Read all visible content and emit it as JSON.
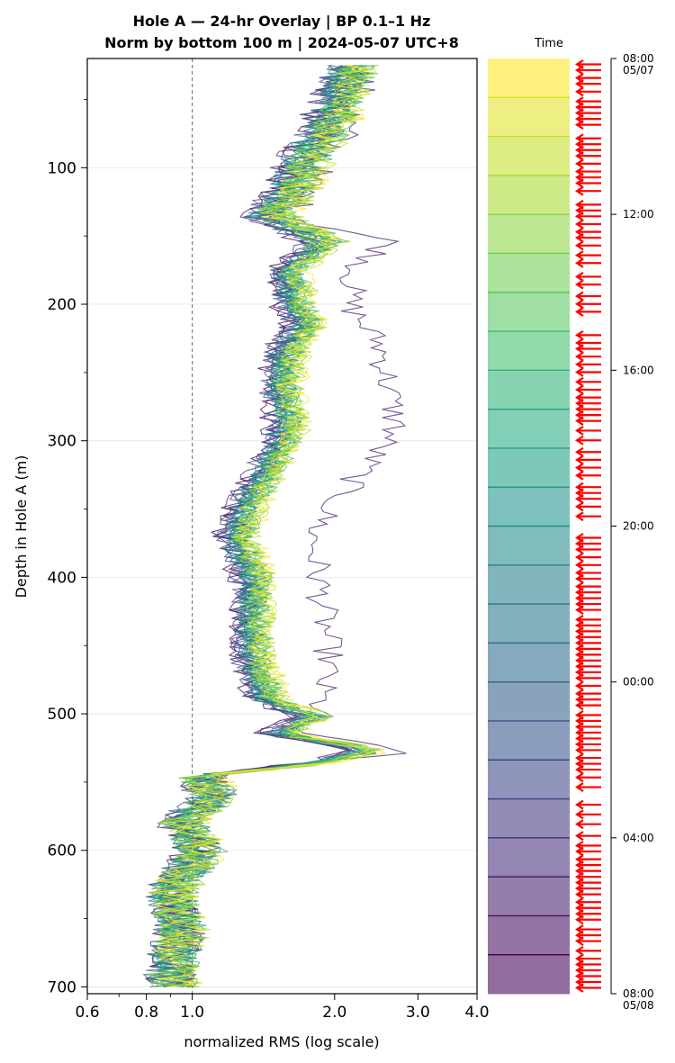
{
  "title_line1": "Hole A — 24-hr Overlay  |  BP 0.1–1 Hz",
  "title_line2": "Norm by bottom 100 m  |  2024-05-07 UTC+8",
  "chart_data": {
    "type": "line",
    "xlabel": "normalized RMS  (log scale)",
    "ylabel": "Depth in Hole A (m)",
    "xscale": "log",
    "xlim": [
      0.6,
      4.0
    ],
    "ylim": [
      705,
      20
    ],
    "y_inverted": true,
    "x_ticks": [
      {
        "value": 0.6,
        "label": "0.6"
      },
      {
        "value": 0.8,
        "label": "0.8"
      },
      {
        "value": 1.0,
        "label": "1.0"
      },
      {
        "value": 2.0,
        "label": "2.0"
      },
      {
        "value": 3.0,
        "label": "3.0"
      },
      {
        "value": 4.0,
        "label": "4.0"
      }
    ],
    "y_ticks": [
      {
        "value": 100,
        "label": "100"
      },
      {
        "value": 200,
        "label": "200"
      },
      {
        "value": 300,
        "label": "300"
      },
      {
        "value": 400,
        "label": "400"
      },
      {
        "value": 500,
        "label": "500"
      },
      {
        "value": 600,
        "label": "600"
      },
      {
        "value": 700,
        "label": "700"
      }
    ],
    "grid": "horizontal",
    "reference_line": {
      "x": 1.0,
      "style": "dashed",
      "color": "#7f7f7f"
    },
    "n_profiles": 24,
    "profile_depths": [
      25,
      40,
      60,
      80,
      100,
      120,
      135,
      155,
      175,
      200,
      215,
      230,
      260,
      290,
      320,
      350,
      370,
      400,
      430,
      460,
      490,
      502,
      515,
      527,
      535,
      545,
      560,
      580,
      600,
      630,
      660,
      690,
      700
    ],
    "profile_rms_median": [
      2.2,
      2.1,
      2.0,
      1.85,
      1.7,
      1.6,
      1.45,
      1.9,
      1.6,
      1.65,
      1.75,
      1.6,
      1.55,
      1.6,
      1.45,
      1.3,
      1.25,
      1.35,
      1.35,
      1.35,
      1.45,
      1.8,
      1.5,
      2.4,
      1.9,
      1.05,
      1.1,
      0.95,
      1.05,
      0.9,
      0.95,
      0.9,
      0.92
    ],
    "outlier_profile_rms": [
      2.25,
      2.2,
      2.15,
      2.0,
      1.8,
      1.7,
      1.55,
      2.6,
      2.2,
      2.15,
      2.3,
      2.5,
      2.6,
      2.7,
      2.3,
      1.95,
      1.8,
      1.85,
      1.9,
      1.95,
      1.85,
      1.85,
      1.6,
      2.9,
      1.85,
      1.0,
      1.1,
      0.95,
      1.05,
      0.9,
      0.95,
      0.9,
      0.92
    ],
    "colormap": "viridis",
    "colorbar": {
      "title": "Time",
      "range": [
        "2024-05-07 08:00",
        "2024-05-08 08:00"
      ],
      "n_bands": 24,
      "ticks": [
        {
          "label": "08:00",
          "sublabel": "05/07",
          "hours": 0
        },
        {
          "label": "12:00",
          "sublabel": "",
          "hours": 4
        },
        {
          "label": "16:00",
          "sublabel": "",
          "hours": 8
        },
        {
          "label": "20:00",
          "sublabel": "",
          "hours": 12
        },
        {
          "label": "00:00",
          "sublabel": "",
          "hours": 16
        },
        {
          "label": "04:00",
          "sublabel": "",
          "hours": 20
        },
        {
          "label": "08:00",
          "sublabel": "05/08",
          "hours": 24
        }
      ],
      "marker_color": "#ff0000",
      "marker_hours": [
        0.15,
        0.3,
        0.5,
        0.65,
        0.85,
        1.1,
        1.25,
        1.4,
        1.55,
        1.7,
        2.05,
        2.2,
        2.35,
        2.5,
        2.7,
        2.9,
        3.05,
        3.2,
        3.4,
        3.75,
        3.9,
        4.05,
        4.25,
        4.45,
        4.6,
        4.8,
        5.05,
        5.25,
        5.6,
        5.8,
        6.1,
        6.3,
        6.5,
        7.1,
        7.3,
        7.45,
        7.65,
        7.85,
        8.05,
        8.3,
        8.5,
        8.7,
        8.85,
        9.0,
        9.15,
        9.3,
        9.55,
        9.8,
        10.1,
        10.3,
        10.5,
        10.7,
        11.0,
        11.15,
        11.3,
        11.5,
        11.75,
        12.3,
        12.45,
        12.6,
        12.8,
        13.0,
        13.2,
        13.35,
        13.55,
        13.7,
        13.85,
        14.0,
        14.15,
        14.4,
        14.55,
        14.7,
        14.85,
        15.0,
        15.15,
        15.3,
        15.45,
        15.6,
        15.75,
        15.9,
        16.1,
        16.3,
        16.45,
        16.6,
        16.85,
        17.0,
        17.15,
        17.3,
        17.45,
        17.6,
        17.75,
        17.95,
        18.1,
        18.25,
        18.45,
        18.7,
        19.15,
        19.4,
        19.65,
        19.95,
        20.2,
        20.35,
        20.55,
        20.7,
        20.85,
        21.0,
        21.15,
        21.3,
        21.45,
        21.65,
        21.8,
        21.95,
        22.1,
        22.35,
        22.5,
        22.65,
        22.9,
        23.1,
        23.25,
        23.4,
        23.55,
        23.7,
        23.85
      ]
    }
  }
}
